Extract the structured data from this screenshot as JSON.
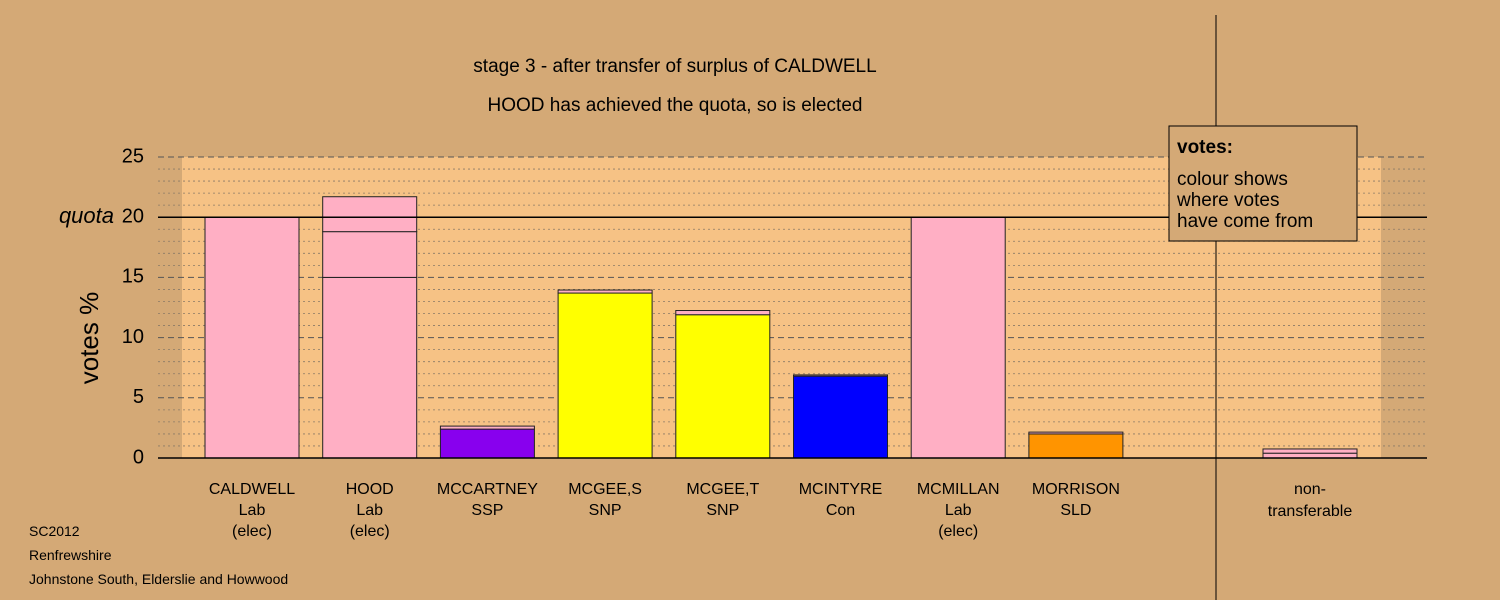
{
  "colors": {
    "background": "#d4a976",
    "plot_area": "#f6c285",
    "legend_box": "#d4a976",
    "lab": "#ffafc4",
    "ssp": "#8800ee",
    "snp": "#ffff00",
    "con": "#0000ff",
    "sld": "#ff9400"
  },
  "chart_data": {
    "type": "bar",
    "title": "stage 3 - after transfer of surplus of CALDWELL",
    "subtitle": "HOOD has achieved the quota, so is elected",
    "ylabel": "votes %",
    "ylim": [
      0,
      25
    ],
    "yticks": [
      0,
      5,
      10,
      15,
      20,
      25
    ],
    "quota_value": 20,
    "quota_label": "quota",
    "grid": true,
    "legend": {
      "position": "top-right",
      "title": "votes:",
      "lines": [
        "colour shows",
        "where votes",
        "have come from"
      ]
    },
    "categories": [
      {
        "name": "CALDWELL",
        "party": "Lab",
        "status": "(elec)",
        "segments": [
          {
            "value": 20.0,
            "color": "lab"
          }
        ]
      },
      {
        "name": "HOOD",
        "party": "Lab",
        "status": "(elec)",
        "segments": [
          {
            "value": 15.0,
            "color": "lab"
          },
          {
            "value": 3.8,
            "color": "lab"
          },
          {
            "value": 2.9,
            "color": "lab"
          }
        ]
      },
      {
        "name": "MCCARTNEY",
        "party": "SSP",
        "status": "",
        "segments": [
          {
            "value": 2.4,
            "color": "ssp"
          },
          {
            "value": 0.25,
            "color": "lab"
          }
        ]
      },
      {
        "name": "MCGEE,S",
        "party": "SNP",
        "status": "",
        "segments": [
          {
            "value": 13.7,
            "color": "snp"
          },
          {
            "value": 0.25,
            "color": "lab"
          }
        ]
      },
      {
        "name": "MCGEE,T",
        "party": "SNP",
        "status": "",
        "segments": [
          {
            "value": 11.9,
            "color": "snp"
          },
          {
            "value": 0.35,
            "color": "lab"
          }
        ]
      },
      {
        "name": "MCINTYRE",
        "party": "Con",
        "status": "",
        "segments": [
          {
            "value": 6.8,
            "color": "con"
          },
          {
            "value": 0.1,
            "color": "lab"
          }
        ]
      },
      {
        "name": "MCMILLAN",
        "party": "Lab",
        "status": "(elec)",
        "segments": [
          {
            "value": 20.0,
            "color": "lab"
          }
        ]
      },
      {
        "name": "MORRISON",
        "party": "SLD",
        "status": "",
        "segments": [
          {
            "value": 2.0,
            "color": "sld"
          },
          {
            "value": 0.15,
            "color": "lab"
          }
        ]
      }
    ],
    "non_transferable": {
      "label_line1": "non-",
      "label_line2": "transferable",
      "segments": [
        {
          "value": 0.4,
          "color": "lab"
        },
        {
          "value": 0.35,
          "color": "lab"
        }
      ]
    }
  },
  "footer": {
    "line1": "SC2012",
    "line2": "Renfrewshire",
    "line3": "Johnstone South, Elderslie and Howwood"
  }
}
